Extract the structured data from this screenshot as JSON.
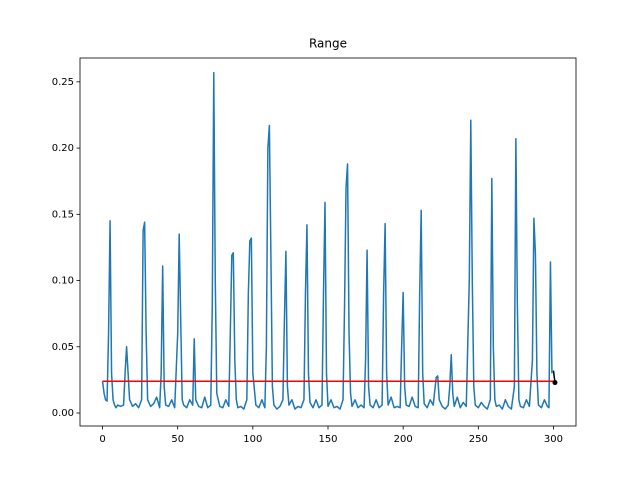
{
  "chart_data": {
    "type": "line",
    "title": "Range",
    "xlim": [
      -15,
      315
    ],
    "ylim": [
      -0.0098,
      0.268
    ],
    "xticks": [
      0,
      50,
      100,
      150,
      200,
      250,
      300
    ],
    "yticks": [
      {
        "value": 0,
        "label": "0.00"
      },
      {
        "value": 0.05,
        "label": "0.05"
      },
      {
        "value": 0.1,
        "label": "0.10"
      },
      {
        "value": 0.15,
        "label": "0.15"
      },
      {
        "value": 0.2,
        "label": "0.20"
      },
      {
        "value": 0.25,
        "label": "0.25"
      }
    ],
    "series": [
      {
        "color": "#1f77b4",
        "x": [
          0,
          1,
          2,
          3,
          4,
          5,
          6,
          7,
          8,
          9,
          10,
          12,
          14,
          15,
          16,
          17,
          18,
          20,
          22,
          24,
          26,
          27,
          28,
          29,
          30,
          32,
          34,
          36,
          38,
          39,
          40,
          41,
          42,
          44,
          46,
          48,
          50,
          51,
          52,
          53,
          54,
          56,
          58,
          60,
          61,
          62,
          64,
          66,
          68,
          70,
          72,
          73,
          74,
          75,
          76,
          78,
          80,
          82,
          84,
          85,
          86,
          87,
          88,
          89,
          90,
          92,
          94,
          96,
          97,
          98,
          99,
          100,
          102,
          104,
          106,
          108,
          109,
          110,
          111,
          112,
          113,
          114,
          116,
          118,
          120,
          121,
          122,
          123,
          124,
          126,
          128,
          130,
          132,
          134,
          135,
          136,
          137,
          138,
          140,
          142,
          144,
          146,
          147,
          148,
          149,
          150,
          152,
          154,
          156,
          158,
          160,
          161,
          162,
          163,
          164,
          165,
          166,
          168,
          170,
          172,
          174,
          175,
          176,
          177,
          178,
          180,
          182,
          184,
          186,
          187,
          188,
          189,
          190,
          192,
          194,
          196,
          198,
          199,
          200,
          201,
          202,
          204,
          206,
          208,
          210,
          211,
          212,
          213,
          214,
          216,
          218,
          220,
          222,
          223,
          224,
          226,
          228,
          230,
          231,
          232,
          233,
          234,
          236,
          238,
          240,
          242,
          244,
          245,
          246,
          247,
          248,
          250,
          252,
          254,
          256,
          258,
          259,
          260,
          261,
          262,
          264,
          266,
          268,
          270,
          272,
          274,
          275,
          276,
          277,
          278,
          280,
          282,
          284,
          286,
          287,
          288,
          289,
          290,
          292,
          294,
          296,
          297,
          298,
          299
        ],
        "values": [
          0.024,
          0.015,
          0.01,
          0.009,
          0.06,
          0.145,
          0.03,
          0.01,
          0.006,
          0.004,
          0.006,
          0.005,
          0.006,
          0.03,
          0.05,
          0.03,
          0.01,
          0.005,
          0.007,
          0.004,
          0.01,
          0.138,
          0.144,
          0.06,
          0.01,
          0.005,
          0.007,
          0.012,
          0.004,
          0.03,
          0.111,
          0.02,
          0.006,
          0.005,
          0.01,
          0.004,
          0.06,
          0.135,
          0.07,
          0.01,
          0.006,
          0.004,
          0.01,
          0.006,
          0.056,
          0.01,
          0.005,
          0.004,
          0.012,
          0.004,
          0.006,
          0.08,
          0.257,
          0.1,
          0.015,
          0.005,
          0.004,
          0.01,
          0.005,
          0.06,
          0.119,
          0.121,
          0.04,
          0.01,
          0.004,
          0.005,
          0.003,
          0.01,
          0.09,
          0.13,
          0.132,
          0.03,
          0.006,
          0.004,
          0.01,
          0.004,
          0.05,
          0.2,
          0.217,
          0.12,
          0.02,
          0.006,
          0.003,
          0.005,
          0.01,
          0.07,
          0.122,
          0.02,
          0.006,
          0.01,
          0.003,
          0.005,
          0.004,
          0.01,
          0.09,
          0.142,
          0.03,
          0.008,
          0.004,
          0.01,
          0.004,
          0.006,
          0.09,
          0.159,
          0.03,
          0.005,
          0.01,
          0.004,
          0.005,
          0.003,
          0.01,
          0.08,
          0.17,
          0.188,
          0.06,
          0.015,
          0.005,
          0.01,
          0.004,
          0.006,
          0.004,
          0.04,
          0.123,
          0.02,
          0.006,
          0.004,
          0.01,
          0.004,
          0.006,
          0.09,
          0.143,
          0.03,
          0.006,
          0.012,
          0.004,
          0.005,
          0.004,
          0.05,
          0.091,
          0.02,
          0.006,
          0.005,
          0.012,
          0.005,
          0.004,
          0.09,
          0.153,
          0.03,
          0.007,
          0.004,
          0.01,
          0.006,
          0.027,
          0.028,
          0.01,
          0.005,
          0.003,
          0.006,
          0.02,
          0.044,
          0.015,
          0.005,
          0.012,
          0.004,
          0.008,
          0.005,
          0.1,
          0.221,
          0.1,
          0.02,
          0.006,
          0.004,
          0.008,
          0.005,
          0.003,
          0.01,
          0.177,
          0.05,
          0.01,
          0.005,
          0.006,
          0.003,
          0.01,
          0.005,
          0.003,
          0.02,
          0.207,
          0.08,
          0.01,
          0.005,
          0.004,
          0.01,
          0.005,
          0.04,
          0.147,
          0.12,
          0.03,
          0.006,
          0.004,
          0.01,
          0.005,
          0.004,
          0.114,
          0.03
        ]
      },
      {
        "color": "#ff0000",
        "x": [
          0,
          300
        ],
        "values": [
          0.024,
          0.024
        ]
      },
      {
        "color": "#000000",
        "x": [
          300,
          301
        ],
        "values": [
          0.032,
          0.023
        ],
        "marker": "end"
      }
    ]
  }
}
